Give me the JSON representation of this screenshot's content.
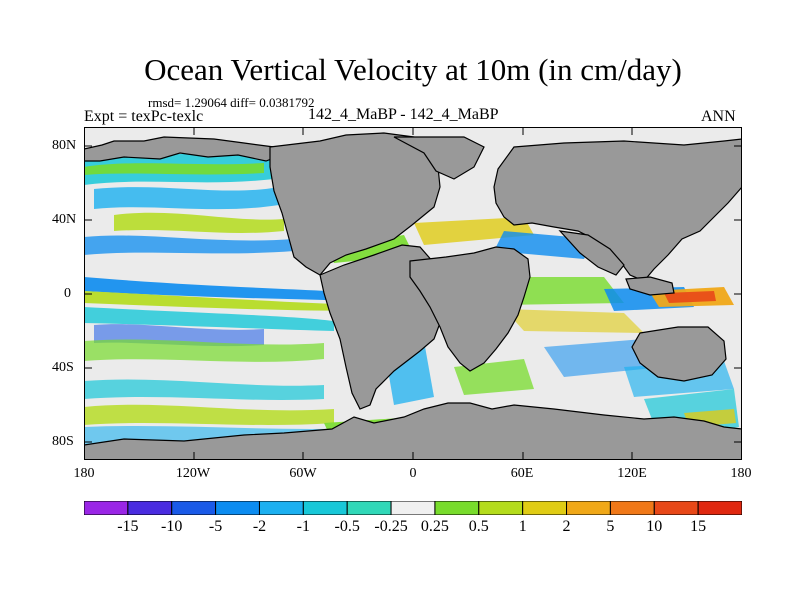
{
  "title": "Ocean Vertical Velocity at 10m (in cm/day)",
  "stats": "rmsd= 1.29064 diff= 0.0381792",
  "expt_label": "Expt = texPc-texlc",
  "case_label": "142_4_MaBP - 142_4_MaBP",
  "season": "ANN",
  "map": {
    "lat_labels": [
      "80N",
      "40N",
      "0",
      "40S",
      "80S"
    ],
    "lon_labels": [
      "180",
      "120W",
      "60W",
      "0",
      "60E",
      "120E",
      "180"
    ],
    "lat_range": [
      -90,
      90
    ],
    "lon_range": [
      -180,
      180
    ],
    "land_color": "#999999",
    "ocean_background": "#ebebeb"
  },
  "colorbar": {
    "labels": [
      "-15",
      "-10",
      "-5",
      "-2",
      "-1",
      "-0.5",
      "-0.25",
      "0.25",
      "0.5",
      "1",
      "2",
      "5",
      "10",
      "15"
    ],
    "colors": [
      "#9a26e6",
      "#4a2ce0",
      "#1a5ae8",
      "#0c8cf0",
      "#1cb0f0",
      "#18c8d8",
      "#30d8b8",
      "#f0f0f0",
      "#78dc2c",
      "#b4dc1c",
      "#e0cc14",
      "#f0a818",
      "#f07818",
      "#e84818",
      "#e02810"
    ]
  }
}
